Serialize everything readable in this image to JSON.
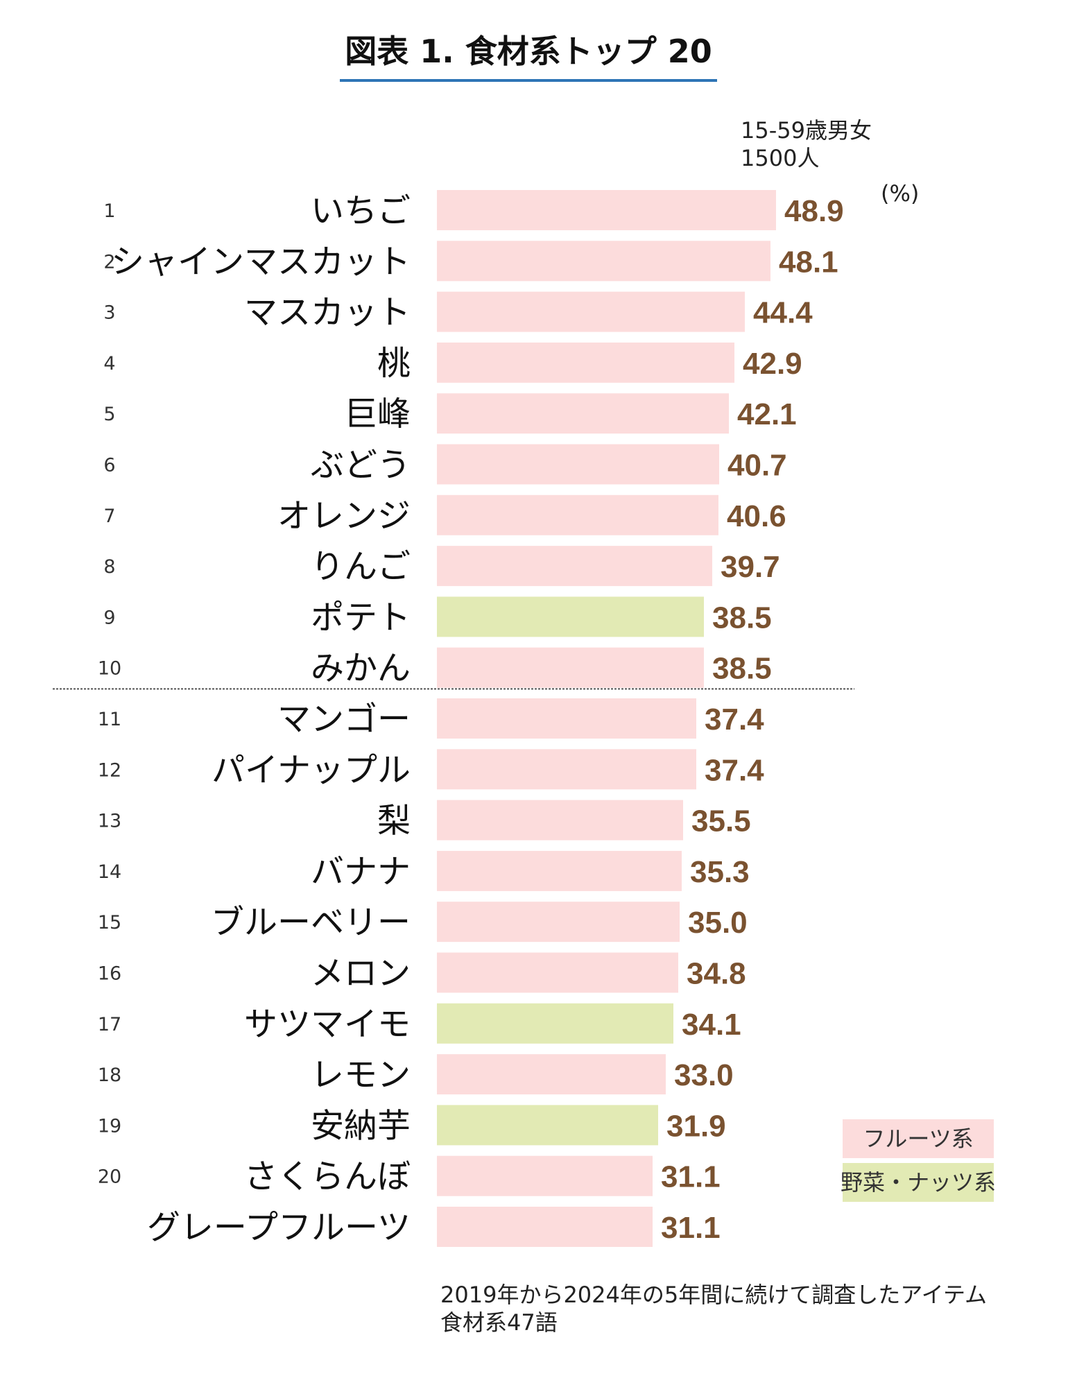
{
  "chart_data": {
    "type": "bar",
    "orientation": "horizontal",
    "title": "図表 1. 食材系トップ 20",
    "sample_note": [
      "15-59歳男女",
      "1500人"
    ],
    "unit": "(%)",
    "ranks": [
      "1",
      "2",
      "3",
      "4",
      "5",
      "6",
      "7",
      "8",
      "9",
      "10",
      "11",
      "12",
      "13",
      "14",
      "15",
      "16",
      "17",
      "18",
      "19",
      "20",
      ""
    ],
    "categories": [
      "いちご",
      "シャインマスカット",
      "マスカット",
      "桃",
      "巨峰",
      "ぶどう",
      "オレンジ",
      "りんご",
      "ポテト",
      "みかん",
      "マンゴー",
      "パイナップル",
      "梨",
      "バナナ",
      "ブルーベリー",
      "メロン",
      "サツマイモ",
      "レモン",
      "安納芋",
      "さくらんぼ",
      "グレープフルーツ"
    ],
    "values": [
      48.9,
      48.1,
      44.4,
      42.9,
      42.1,
      40.7,
      40.6,
      39.7,
      38.5,
      38.5,
      37.4,
      37.4,
      35.5,
      35.3,
      35.0,
      34.8,
      34.1,
      33.0,
      31.9,
      31.1,
      31.1
    ],
    "value_labels": [
      "48.9",
      "48.1",
      "44.4",
      "42.9",
      "42.1",
      "40.7",
      "40.6",
      "39.7",
      "38.5",
      "38.5",
      "37.4",
      "37.4",
      "35.5",
      "35.3",
      "35.0",
      "34.8",
      "34.1",
      "33.0",
      "31.9",
      "31.1",
      "31.1"
    ],
    "groups": [
      "fruit",
      "fruit",
      "fruit",
      "fruit",
      "fruit",
      "fruit",
      "fruit",
      "fruit",
      "veg",
      "fruit",
      "fruit",
      "fruit",
      "fruit",
      "fruit",
      "fruit",
      "fruit",
      "veg",
      "fruit",
      "veg",
      "fruit",
      "fruit"
    ],
    "legend": {
      "position": "bottom-right",
      "items": [
        {
          "key": "fruit",
          "label": "フルーツ系",
          "color": "#fcdcdc"
        },
        {
          "key": "veg",
          "label": "野菜・ナッツ系",
          "color": "#e2eab4"
        }
      ]
    },
    "divider_after_rank": 10,
    "footer": [
      "2019年から2024年の5年間に続けて調査したアイテム",
      "食材系47語"
    ],
    "colors": {
      "value_label": "#7a5230",
      "title_underline": "#2e75b6"
    }
  }
}
